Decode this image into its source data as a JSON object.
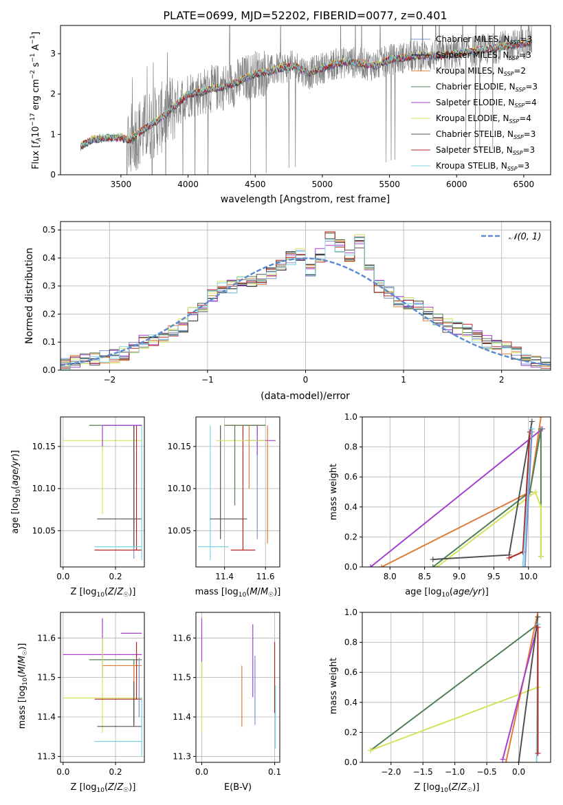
{
  "title": "PLATE=0699, MJD=52202, FIBERID=0077, z=0.401",
  "colors": {
    "Chabrier MILES": "#7b8fd6",
    "Salpeter MILES": "#111111",
    "Kroupa MILES": "#e07b39",
    "Chabrier ELODIE": "#4f7f58",
    "Salpeter ELODIE": "#a63fcf",
    "Kroupa ELODIE": "#d4e35a",
    "Chabrier STELIB": "#505050",
    "Salpeter STELIB": "#b22222",
    "Kroupa STELIB": "#7fd3de",
    "gauss": "#5b8bd0",
    "data": "#808080"
  },
  "chart_data": [
    {
      "id": "spectrum",
      "type": "line",
      "title": "PLATE=0699, MJD=52202, FIBERID=0077, z=0.401",
      "xlabel": "wavelength [Angstrom, rest frame]",
      "ylabel": "Flux [f_λ 10^-17 erg cm^-2 s^-1 A^-1]",
      "xlim": [
        3050,
        6700
      ],
      "ylim": [
        0,
        3.7
      ],
      "xticks": [
        "3500",
        "4000",
        "4500",
        "5000",
        "5500",
        "6000",
        "6500"
      ],
      "yticks": [
        "0",
        "1",
        "2",
        "3"
      ],
      "legend": [
        "Chabrier MILES, N_SSP=3",
        "Salpeter MILES, N_SSP=3",
        "Kroupa MILES, N_SSP=2",
        "Chabrier ELODIE, N_SSP=3",
        "Salpeter ELODIE, N_SSP=4",
        "Kroupa ELODIE, N_SSP=4",
        "Chabrier STELIB, N_SSP=3",
        "Salpeter STELIB, N_SSP=3",
        "Kroupa STELIB, N_SSP=3"
      ],
      "legend_loc": "right",
      "model_continuum": {
        "x": [
          3200,
          3230,
          3300,
          3400,
          3500,
          3560,
          3620,
          3700,
          3800,
          3900,
          3950,
          4000,
          4100,
          4200,
          4300,
          4400,
          4500,
          4600,
          4700,
          4800,
          4900,
          5000,
          5100,
          5200,
          5300,
          5400,
          5500,
          5600,
          5700,
          5800,
          5900,
          6000,
          6100,
          6200,
          6300,
          6400,
          6500,
          6560
        ],
        "y": [
          0.7,
          0.78,
          0.88,
          0.92,
          0.92,
          0.85,
          1.0,
          1.2,
          1.4,
          1.7,
          1.85,
          2.0,
          2.05,
          2.15,
          2.2,
          2.35,
          2.5,
          2.55,
          2.65,
          2.7,
          2.5,
          2.65,
          2.75,
          2.8,
          2.75,
          2.7,
          2.85,
          2.9,
          2.95,
          2.95,
          2.95,
          3.0,
          3.05,
          3.1,
          3.15,
          3.2,
          3.25,
          3.3
        ]
      }
    },
    {
      "id": "residuals",
      "type": "line",
      "xlabel": "(data-model)/error",
      "ylabel": "Normed distribution",
      "xlim": [
        -2.5,
        2.5
      ],
      "ylim": [
        0,
        0.53
      ],
      "xticks": [
        "−2",
        "−1",
        "0",
        "1",
        "2"
      ],
      "yticks": [
        "0.0",
        "0.1",
        "0.2",
        "0.3",
        "0.4",
        "0.5"
      ],
      "legend": [
        "𝒩(0, 1)"
      ],
      "grid": true,
      "hist_bins": [
        -2.5,
        -2.4,
        -2.3,
        -2.2,
        -2.1,
        -2.0,
        -1.9,
        -1.8,
        -1.7,
        -1.6,
        -1.5,
        -1.4,
        -1.3,
        -1.2,
        -1.1,
        -1.0,
        -0.9,
        -0.8,
        -0.7,
        -0.6,
        -0.5,
        -0.4,
        -0.3,
        -0.2,
        -0.1,
        0.0,
        0.1,
        0.2,
        0.3,
        0.4,
        0.5,
        0.6,
        0.7,
        0.8,
        0.9,
        1.0,
        1.1,
        1.2,
        1.3,
        1.4,
        1.5,
        1.6,
        1.7,
        1.8,
        1.9,
        2.0,
        2.1,
        2.2,
        2.3,
        2.4,
        2.5
      ],
      "hist_values": [
        0.02,
        0.03,
        0.04,
        0.04,
        0.05,
        0.05,
        0.06,
        0.08,
        0.1,
        0.11,
        0.12,
        0.14,
        0.16,
        0.2,
        0.23,
        0.27,
        0.3,
        0.3,
        0.31,
        0.32,
        0.32,
        0.35,
        0.38,
        0.4,
        0.41,
        0.36,
        0.41,
        0.47,
        0.44,
        0.41,
        0.46,
        0.38,
        0.3,
        0.28,
        0.25,
        0.24,
        0.23,
        0.2,
        0.18,
        0.16,
        0.15,
        0.14,
        0.12,
        0.1,
        0.09,
        0.08,
        0.06,
        0.04,
        0.03,
        0.02
      ]
    },
    {
      "id": "age-vs-Z",
      "type": "scatter",
      "xlabel": "Z [log10(Z/Z☉)]",
      "ylabel": "age  [log10(age/yr)]",
      "xlim": [
        -0.01,
        0.31
      ],
      "ylim": [
        10.007,
        10.185
      ],
      "xticks": [
        "0.0",
        "0.2"
      ],
      "yticks": [
        "10.05",
        "10.10",
        "10.15"
      ]
    },
    {
      "id": "age-vs-mass",
      "type": "scatter",
      "xlabel": "mass [log10(M/M☉)]",
      "ylabel": "",
      "xlim": [
        11.26,
        11.67
      ],
      "ylim": [
        10.007,
        10.185
      ],
      "xticks": [
        "11.4",
        "11.6"
      ],
      "yticks": [
        "10.05",
        "10.10",
        "10.15"
      ]
    },
    {
      "id": "massweight-vs-age",
      "type": "line",
      "xlabel": "age  [log10(age/yr)]",
      "ylabel": "mass weight",
      "xlim": [
        7.6,
        10.32
      ],
      "ylim": [
        0,
        1.0
      ],
      "xticks": [
        "8.0",
        "8.5",
        "9.0",
        "9.5",
        "10.0"
      ],
      "yticks": [
        "0.0",
        "0.2",
        "0.4",
        "0.6",
        "0.8",
        "1.0"
      ],
      "grid": true
    },
    {
      "id": "mass-vs-Z",
      "type": "scatter",
      "xlabel": "Z [log10(Z/Z☉)]",
      "ylabel": "mass [log10(M/M☉)]",
      "xlim": [
        -0.01,
        0.31
      ],
      "ylim": [
        11.285,
        11.665
      ],
      "xticks": [
        "0.0",
        "0.2"
      ],
      "yticks": [
        "11.3",
        "11.4",
        "11.5",
        "11.6"
      ]
    },
    {
      "id": "mass-vs-EBV",
      "type": "scatter",
      "xlabel": "E(B-V)",
      "ylabel": "",
      "xlim": [
        -0.008,
        0.107
      ],
      "ylim": [
        11.285,
        11.665
      ],
      "xticks": [
        "0.0",
        "0.1"
      ],
      "yticks": [
        "11.3",
        "11.4",
        "11.5",
        "11.6"
      ]
    },
    {
      "id": "massweight-vs-Z",
      "type": "line",
      "xlabel": "Z [log10(Z/Z☉)]",
      "ylabel": "mass weight",
      "xlim": [
        -2.45,
        0.5
      ],
      "ylim": [
        0,
        1.0
      ],
      "xticks": [
        "−2.0",
        "−1.5",
        "−1.0",
        "−0.5",
        "0.0"
      ],
      "yticks": [
        "0.0",
        "0.2",
        "0.4",
        "0.6",
        "0.8",
        "1.0"
      ],
      "grid": true
    }
  ],
  "panels_data": {
    "ageZ": [
      {
        "c": "Chabrier MILES",
        "x": 0.27,
        "xe": [
          0.27,
          0.27
        ],
        "y": 10.03,
        "ye": [
          10.017,
          10.175
        ]
      },
      {
        "c": "Kroupa MILES",
        "x": 0.27,
        "xe": [
          0.27,
          0.3
        ],
        "y": 10.175,
        "ye": [
          10.04,
          10.175
        ]
      },
      {
        "c": "Chabrier ELODIE",
        "x": 0.27,
        "xe": [
          0.1,
          0.3
        ],
        "y": 10.175,
        "ye": [
          10.05,
          10.175
        ]
      },
      {
        "c": "Kroupa ELODIE",
        "x": 0.15,
        "xe": [
          0.0,
          0.3
        ],
        "y": 10.157,
        "ye": [
          10.07,
          10.157
        ]
      },
      {
        "c": "Chabrier STELIB",
        "x": 0.27,
        "xe": [
          0.13,
          0.3
        ],
        "y": 10.064,
        "ye": [
          10.03,
          10.175
        ]
      },
      {
        "c": "Salpeter STELIB",
        "x": 0.28,
        "xe": [
          0.12,
          0.3
        ],
        "y": 10.027,
        "ye": [
          10.027,
          10.175
        ]
      },
      {
        "c": "Kroupa STELIB",
        "x": 0.3,
        "xe": [
          0.12,
          0.3
        ],
        "y": 10.031,
        "ye": [
          10.015,
          10.175
        ]
      },
      {
        "c": "Salpeter ELODIE",
        "x": 0.15,
        "xe": [
          0.15,
          0.3
        ],
        "y": 10.175,
        "ye": [
          10.15,
          10.175
        ]
      }
    ],
    "ageMass": [
      {
        "c": "Kroupa STELIB",
        "x": 11.33,
        "xe": [
          11.27,
          11.42
        ],
        "y": 10.031,
        "ye": [
          10.015,
          10.175
        ]
      },
      {
        "c": "Chabrier STELIB",
        "x": 11.38,
        "xe": [
          11.33,
          11.51
        ],
        "y": 10.064,
        "ye": [
          10.04,
          10.175
        ]
      },
      {
        "c": "Salpeter STELIB",
        "x": 11.49,
        "xe": [
          11.43,
          11.55
        ],
        "y": 10.027,
        "ye": [
          10.027,
          10.175
        ]
      },
      {
        "c": "Chabrier MILES",
        "x": 11.56,
        "xe": [
          11.56,
          11.56
        ],
        "y": 10.06,
        "ye": [
          10.04,
          10.175
        ]
      },
      {
        "c": "Kroupa MILES",
        "x": 11.52,
        "xe": [
          11.4,
          11.6
        ],
        "y": 10.175,
        "ye": [
          10.1,
          10.175
        ]
      },
      {
        "c": "Salpeter ELODIE",
        "x": 11.56,
        "xe": [
          11.5,
          11.65
        ],
        "y": 10.157,
        "ye": [
          10.14,
          10.175
        ]
      },
      {
        "c": "Kroupa ELODIE",
        "x": 11.45,
        "xe": [
          11.36,
          11.6
        ],
        "y": 10.157,
        "ye": [
          10.1,
          10.175
        ]
      },
      {
        "c": "Chabrier ELODIE",
        "x": 11.45,
        "xe": [
          11.4,
          11.6
        ],
        "y": 10.175,
        "ye": [
          10.08,
          10.175
        ]
      },
      {
        "c": "Kroupa MILES",
        "x": 11.61,
        "xe": [
          11.6,
          11.6
        ],
        "y": 10.06,
        "ye": [
          10.035,
          10.175
        ]
      }
    ],
    "wAge": [
      {
        "c": "Kroupa MILES",
        "pts": [
          [
            7.88,
            0.0
          ],
          [
            10.02,
            0.5
          ],
          [
            10.18,
            1.0
          ]
        ]
      },
      {
        "c": "Salpeter ELODIE",
        "pts": [
          [
            7.72,
            0.0
          ],
          [
            10.2,
            0.92
          ]
        ]
      },
      {
        "c": "Chabrier ELODIE",
        "pts": [
          [
            8.62,
            0.0
          ],
          [
            10.02,
            0.5
          ],
          [
            10.18,
            0.92
          ],
          [
            10.18,
            0.07
          ]
        ]
      },
      {
        "c": "Kroupa ELODIE",
        "pts": [
          [
            8.68,
            0.0
          ],
          [
            10.1,
            0.5
          ],
          [
            10.18,
            0.4
          ],
          [
            10.18,
            0.07
          ]
        ]
      },
      {
        "c": "Chabrier STELIB",
        "pts": [
          [
            8.62,
            0.05
          ],
          [
            9.72,
            0.08
          ],
          [
            10.05,
            0.97
          ]
        ]
      },
      {
        "c": "Salpeter STELIB",
        "pts": [
          [
            9.72,
            0.06
          ],
          [
            9.92,
            0.1
          ],
          [
            10.02,
            0.9
          ]
        ]
      },
      {
        "c": "Kroupa STELIB",
        "pts": [
          [
            9.92,
            0.0
          ],
          [
            10.05,
            0.92
          ]
        ]
      },
      {
        "c": "Chabrier MILES",
        "pts": [
          [
            9.95,
            0.0
          ],
          [
            10.05,
            0.9
          ]
        ]
      }
    ],
    "massZ": [
      {
        "c": "Salpeter ELODIE",
        "x": 0.15,
        "xe": [
          0.0,
          0.3
        ],
        "y": 11.558,
        "ye": [
          11.5,
          11.65
        ]
      },
      {
        "c": "Chabrier ELODIE",
        "x": 0.27,
        "xe": [
          0.1,
          0.3
        ],
        "y": 11.545,
        "ye": [
          11.38,
          11.545
        ]
      },
      {
        "c": "Kroupa MILES",
        "x": 0.27,
        "xe": [
          0.15,
          0.3
        ],
        "y": 11.53,
        "ye": [
          11.45,
          11.53
        ]
      },
      {
        "c": "Kroupa ELODIE",
        "x": 0.15,
        "xe": [
          0.0,
          0.3
        ],
        "y": 11.448,
        "ye": [
          11.36,
          11.6
        ]
      },
      {
        "c": "Salpeter STELIB",
        "x": 0.28,
        "xe": [
          0.12,
          0.3
        ],
        "y": 11.445,
        "ye": [
          11.445,
          11.59
        ]
      },
      {
        "c": "Chabrier STELIB",
        "x": 0.27,
        "xe": [
          0.13,
          0.3
        ],
        "y": 11.376,
        "ye": [
          11.376,
          11.49
        ]
      },
      {
        "c": "Kroupa STELIB",
        "x": 0.3,
        "xe": [
          0.12,
          0.3
        ],
        "y": 11.338,
        "ye": [
          11.3,
          11.45
        ]
      },
      {
        "c": "Chabrier MILES",
        "x": 0.29,
        "xe": [
          0.29,
          0.29
        ],
        "y": 11.53,
        "ye": [
          11.4,
          11.55
        ]
      },
      {
        "c": "Salpeter ELODIE",
        "x": 0.24,
        "xe": [
          0.22,
          0.3
        ],
        "y": 11.612,
        "ye": [
          11.612,
          11.612
        ]
      }
    ],
    "massEBV": [
      {
        "c": "Salpeter ELODIE",
        "x": 0.0,
        "y": 11.56,
        "ye": [
          11.5,
          11.65
        ]
      },
      {
        "c": "Kroupa ELODIE",
        "x": 0.0,
        "y": 11.45,
        "ye": [
          11.36,
          11.54
        ]
      },
      {
        "c": "Kroupa MILES",
        "x": 0.055,
        "y": 11.45,
        "ye": [
          11.375,
          11.53
        ]
      },
      {
        "c": "Salpeter ELODIE",
        "x": 0.07,
        "y": 11.55,
        "ye": [
          11.45,
          11.635
        ]
      },
      {
        "c": "Chabrier MILES",
        "x": 0.073,
        "y": 11.48,
        "ye": [
          11.38,
          11.555
        ]
      },
      {
        "c": "Salpeter STELIB",
        "x": 0.1,
        "y": 11.49,
        "ye": [
          11.41,
          11.59
        ]
      },
      {
        "c": "Kroupa STELIB",
        "x": 0.101,
        "y": 11.338,
        "ye": [
          11.32,
          11.48
        ]
      }
    ],
    "wZ": [
      {
        "c": "Chabrier ELODIE",
        "pts": [
          [
            -2.32,
            0.08
          ],
          [
            0.3,
            0.92
          ]
        ]
      },
      {
        "c": "Kroupa ELODIE",
        "pts": [
          [
            -2.32,
            0.08
          ],
          [
            0.3,
            0.5
          ]
        ]
      },
      {
        "c": "Kroupa MILES",
        "pts": [
          [
            -0.2,
            0.0
          ],
          [
            0.3,
            1.0
          ]
        ]
      },
      {
        "c": "Salpeter ELODIE",
        "pts": [
          [
            -0.25,
            0.02
          ],
          [
            0.3,
            0.92
          ]
        ]
      },
      {
        "c": "Chabrier STELIB",
        "pts": [
          [
            0.0,
            0.0
          ],
          [
            0.3,
            0.97
          ]
        ]
      },
      {
        "c": "Kroupa STELIB",
        "pts": [
          [
            0.28,
            0.0
          ],
          [
            0.3,
            0.92
          ]
        ]
      },
      {
        "c": "Salpeter STELIB",
        "pts": [
          [
            0.3,
            0.06
          ],
          [
            0.3,
            0.9
          ]
        ]
      }
    ]
  }
}
